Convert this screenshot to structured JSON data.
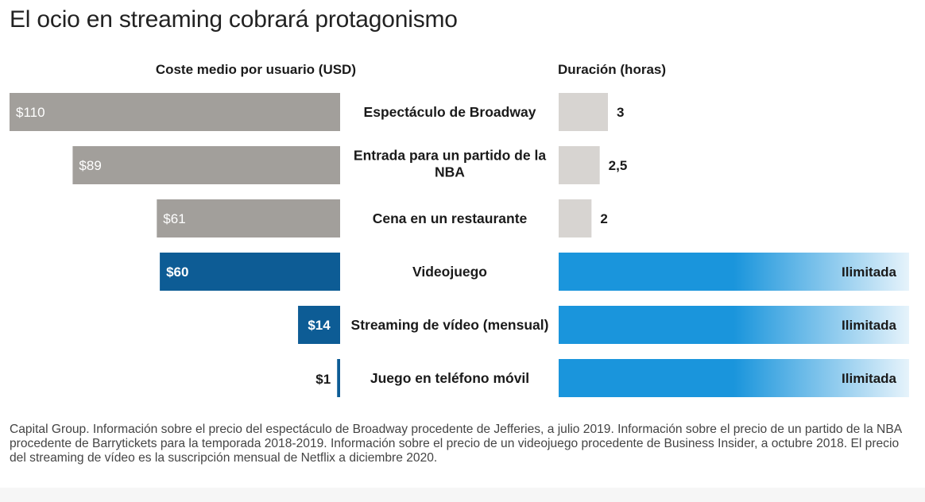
{
  "title": "El ocio en streaming cobrará protagonismo",
  "chart_data": {
    "type": "bar",
    "title": "El ocio en streaming cobrará protagonismo",
    "cost_header": "Coste medio por usuario (USD)",
    "duration_header": "Duración (horas)",
    "categories": [
      [
        "Espectáculo de Broadway"
      ],
      [
        "Entrada para un partido de la",
        "NBA"
      ],
      [
        "Cena en un restaurante"
      ],
      [
        "Videojuego"
      ],
      [
        "Streaming de vídeo (mensual)"
      ],
      [
        "Juego en teléfono móvil"
      ]
    ],
    "cost_values": [
      110,
      89,
      61,
      60,
      14,
      1
    ],
    "cost_labels": [
      "$110",
      "$89",
      "$61",
      "$60",
      "$14",
      "$1"
    ],
    "cost_max": 110,
    "duration_values": [
      3,
      2.5,
      2,
      null,
      null,
      null
    ],
    "duration_labels": [
      "3",
      "2,5",
      "2",
      "Ilimitada",
      "Ilimitada",
      "Ilimitada"
    ],
    "duration_max": 3,
    "streaming": [
      false,
      false,
      false,
      true,
      true,
      true
    ]
  },
  "colors": {
    "gray_bar": "#a29f9b",
    "light_gray_bar": "#d7d4d1",
    "dark_blue": "#0d5c95",
    "bright_blue": "#1a95dc",
    "fade_blue": "#e6f3fb"
  },
  "footnote": "Capital Group. Información sobre el precio del espectáculo de Broadway procedente de Jefferies, a julio 2019. Información sobre el precio de un partido de la NBA procedente de Barrytickets para la temporada 2018-2019. Información sobre el precio de un videojuego procedente de Business Insider, a octubre 2018. El precio del streaming de vídeo es la suscripción mensual de Netflix a diciembre 2020."
}
